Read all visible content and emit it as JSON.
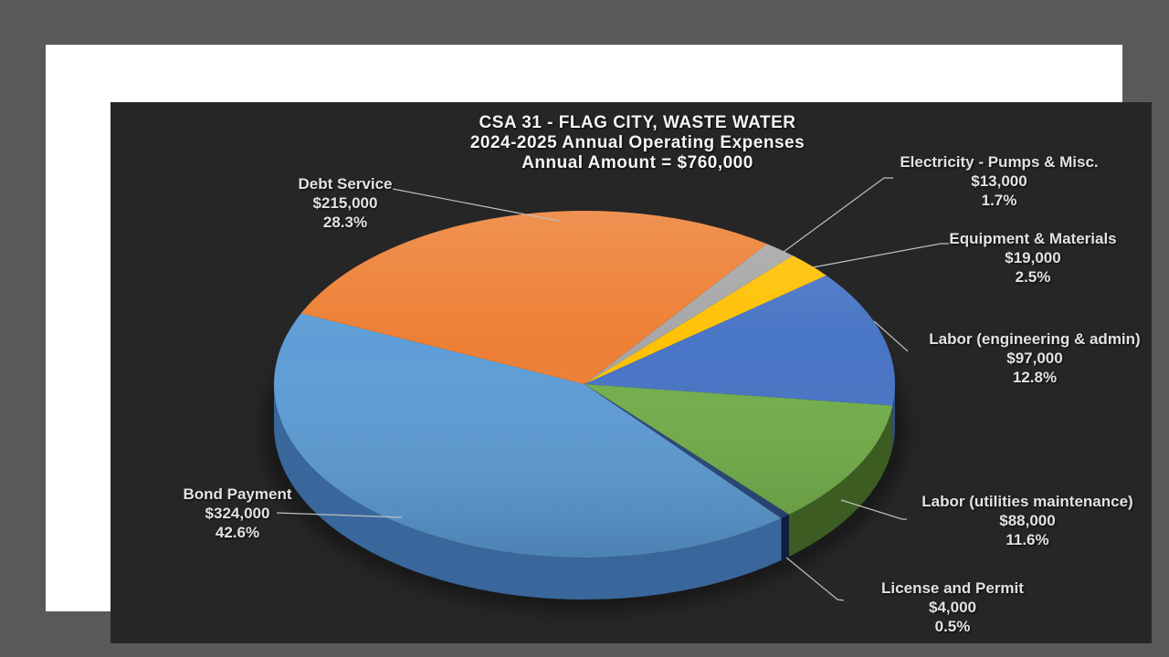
{
  "background": {
    "outer": "#595959",
    "frame": "#FFFFFF",
    "chart": "#262626"
  },
  "title": {
    "line1": "CSA 31 - FLAG CITY, WASTE WATER",
    "line2": "2024-2025 Annual Operating Expenses",
    "line3": "Annual Amount = $760,000"
  },
  "chart_data": {
    "type": "pie",
    "style": "3d",
    "title": "CSA 31 - FLAG CITY, WASTE WATER",
    "subtitle": "2024-2025 Annual Operating Expenses",
    "total_label": "Annual Amount = $760,000",
    "total_value": 760000,
    "start_angle_deg": 36,
    "direction": "clockwise",
    "legend": "none",
    "label_format": "name, dollar amount, percent",
    "leader_line_color": "#BFBFBF",
    "label_text_color": "#E2E2E2",
    "slices": [
      {
        "slug": "electricity-pumps-misc",
        "label": "Electricity - Pumps & Misc.",
        "amount": "$13,000",
        "value": 13000,
        "pct": "1.7%",
        "color": "#A5A5A5",
        "side_color": "#6F6F6F"
      },
      {
        "slug": "equipment-materials",
        "label": "Equipment & Materials",
        "amount": "$19,000",
        "value": 19000,
        "pct": "2.5%",
        "color": "#FFC000",
        "side_color": "#A87F00"
      },
      {
        "slug": "labor-engineering-admin",
        "label": "Labor (engineering & admin)",
        "amount": "$97,000",
        "value": 97000,
        "pct": "12.8%",
        "color": "#4472C4",
        "side_color": "#2E4F8C"
      },
      {
        "slug": "labor-utilities-maintenance",
        "label": "Labor (utilities maintenance)",
        "amount": "$88,000",
        "value": 88000,
        "pct": "11.6%",
        "color": "#70AD47",
        "side_color": "#3C5C22"
      },
      {
        "slug": "license-and-permit",
        "label": "License and Permit",
        "amount": "$4,000",
        "value": 4000,
        "pct": "0.5%",
        "color": "#264478",
        "side_color": "#101F3C"
      },
      {
        "slug": "bond-payment",
        "label": "Bond Payment",
        "amount": "$324,000",
        "value": 324000,
        "pct": "42.6%",
        "color": "#5B9BD5",
        "side_color": "#39679B"
      },
      {
        "slug": "debt-service",
        "label": "Debt Service",
        "amount": "$215,000",
        "value": 215000,
        "pct": "28.3%",
        "color": "#ED7D31",
        "side_color": "#9E5420"
      }
    ]
  }
}
